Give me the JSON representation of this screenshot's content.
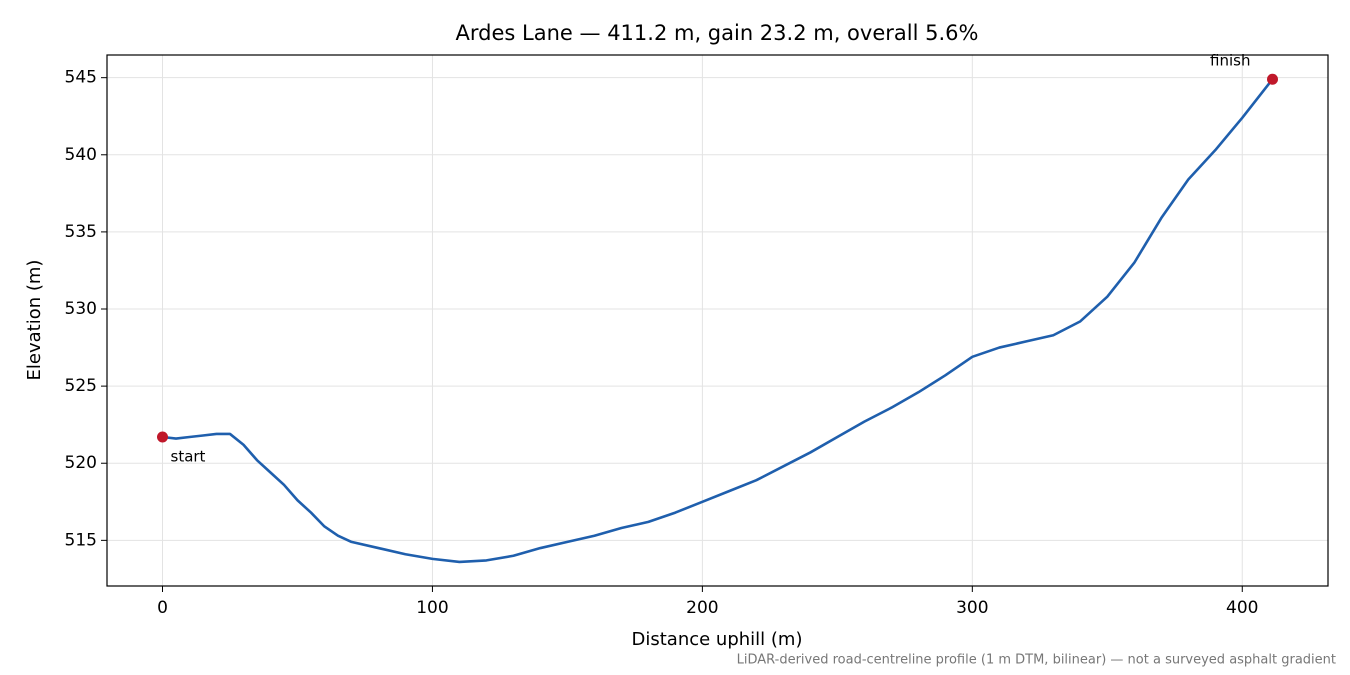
{
  "chart_data": {
    "type": "line",
    "title": "Ardes Lane — 411.2 m, gain 23.2 m, overall 5.6%",
    "x_label": "Distance uphill (m)",
    "y_label": "Elevation (m)",
    "note": "LiDAR-derived road-centreline profile (1 m DTM, bilinear) — not a surveyed asphalt gradient",
    "x": [
      0,
      5,
      10,
      15,
      20,
      25,
      30,
      35,
      40,
      45,
      50,
      55,
      60,
      65,
      70,
      80,
      90,
      100,
      110,
      120,
      130,
      140,
      150,
      160,
      170,
      180,
      190,
      200,
      210,
      220,
      230,
      240,
      250,
      260,
      270,
      280,
      290,
      300,
      310,
      320,
      330,
      340,
      350,
      360,
      370,
      380,
      390,
      400,
      411.2
    ],
    "series": [
      {
        "name": "Elevation",
        "color": "#1f5fad",
        "values": [
          521.7,
          521.6,
          521.7,
          521.8,
          521.9,
          521.9,
          521.2,
          520.2,
          519.4,
          518.6,
          517.6,
          516.8,
          515.9,
          515.3,
          514.9,
          514.5,
          514.1,
          513.8,
          513.6,
          513.7,
          514.0,
          514.5,
          514.9,
          515.3,
          515.8,
          516.2,
          516.8,
          517.5,
          518.2,
          518.9,
          519.8,
          520.7,
          521.7,
          522.7,
          523.6,
          524.6,
          525.7,
          526.9,
          527.5,
          527.9,
          528.3,
          529.2,
          530.8,
          533.0,
          535.9,
          538.4,
          540.3,
          542.4,
          544.9
        ]
      }
    ],
    "endpoint_color": "#c0182a",
    "annotations": [
      "start",
      "finish"
    ],
    "xlim": [
      -20.56,
      431.76
    ],
    "ylim": [
      512.04,
      546.47
    ],
    "xticks": [
      0,
      100,
      200,
      300,
      400
    ],
    "yticks": [
      515,
      520,
      525,
      530,
      535,
      540,
      545
    ],
    "grid": true
  }
}
